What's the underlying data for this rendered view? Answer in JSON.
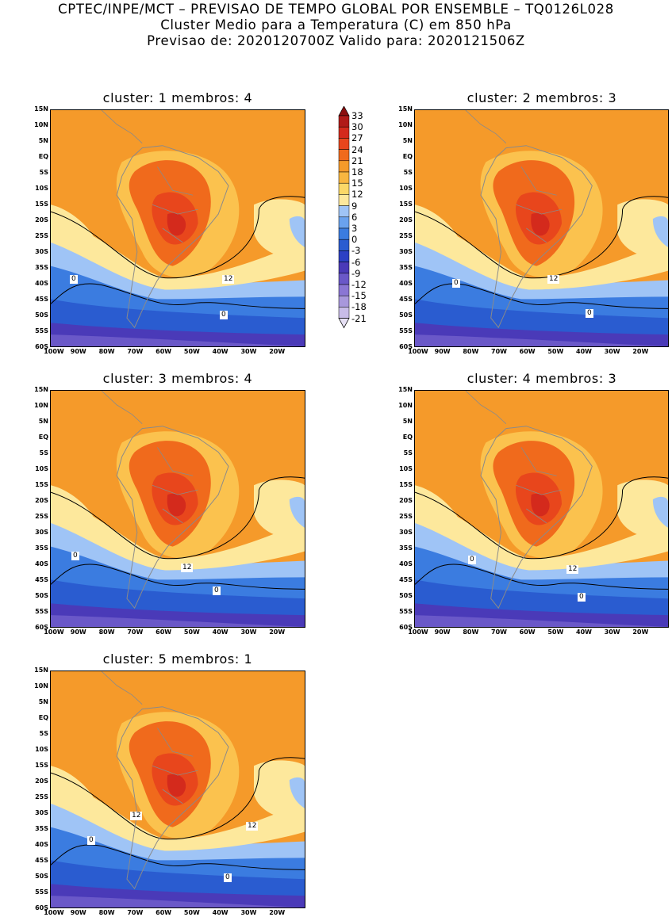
{
  "header": {
    "line1": "CPTEC/INPE/MCT – PREVISAO DE TEMPO GLOBAL POR ENSEMBLE – TQ0126L028",
    "line2": "Cluster Medio para a Temperatura (C) em 850 hPa",
    "line3": "Previsao de: 2020120700Z   Valido para: 2020121506Z"
  },
  "panels": [
    {
      "title": "cluster: 1   membros: 4",
      "labels": [
        "12",
        "0",
        "0"
      ]
    },
    {
      "title": "cluster: 2   membros: 3",
      "labels": [
        "12",
        "0",
        "0"
      ]
    },
    {
      "title": "cluster: 3   membros: 4",
      "labels": [
        "12",
        "0",
        "0"
      ]
    },
    {
      "title": "cluster: 4   membros: 3",
      "labels": [
        "12",
        "0",
        "0"
      ]
    },
    {
      "title": "cluster: 5   membros: 1",
      "labels": [
        "12",
        "12",
        "0",
        "0"
      ]
    }
  ],
  "lat_ticks": [
    "15N",
    "10N",
    "5N",
    "EQ",
    "5S",
    "10S",
    "15S",
    "20S",
    "25S",
    "30S",
    "35S",
    "40S",
    "45S",
    "50S",
    "55S",
    "60S"
  ],
  "lon_ticks": [
    "100W",
    "90W",
    "80W",
    "70W",
    "60W",
    "50W",
    "40W",
    "30W",
    "20W"
  ],
  "colorbar": {
    "levels": [
      "33",
      "30",
      "27",
      "24",
      "21",
      "18",
      "15",
      "12",
      "9",
      "6",
      "3",
      "0",
      "-3",
      "-6",
      "-9",
      "-12",
      "-15",
      "-18",
      "-21"
    ],
    "colors": [
      "#8b0f0f",
      "#b01a18",
      "#d42a1c",
      "#e8461c",
      "#f06a1c",
      "#f59a2a",
      "#f8b640",
      "#fbd868",
      "#fde89c",
      "#9fc4f6",
      "#6aa2ee",
      "#3b7ce0",
      "#2a5cd0",
      "#2c40c4",
      "#4a3ab8",
      "#6a58c8",
      "#8a76d4",
      "#a898dc",
      "#c8bce8",
      "#e6e0f4"
    ]
  }
}
